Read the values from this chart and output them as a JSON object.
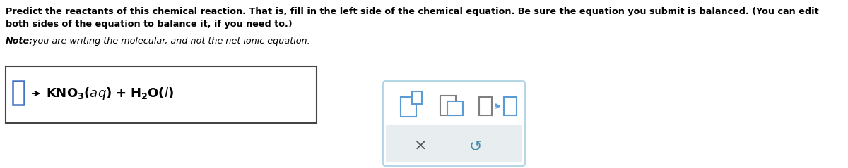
{
  "bg_color": "#ffffff",
  "text_color": "#000000",
  "note_only_italic": "Note:",
  "note_rest": " you are writing the molecular, and not the net ionic equation.",
  "main_text_line1": "Predict the reactants of this chemical reaction. That is, fill in the left side of the chemical equation. Be sure the equation you submit is balanced. (You can edit",
  "main_text_line2": "both sides of the equation to balance it, if you need to.)",
  "icon_color": "#5b9bd5",
  "icon_color2": "#7f7f7f",
  "eq_box_edge": "#444444",
  "small_box_color": "#4472c4",
  "right_panel_edge": "#a8d0e0",
  "right_panel_gray": "#e8eef0",
  "x_color": "#555555",
  "undo_color": "#4a8caa"
}
